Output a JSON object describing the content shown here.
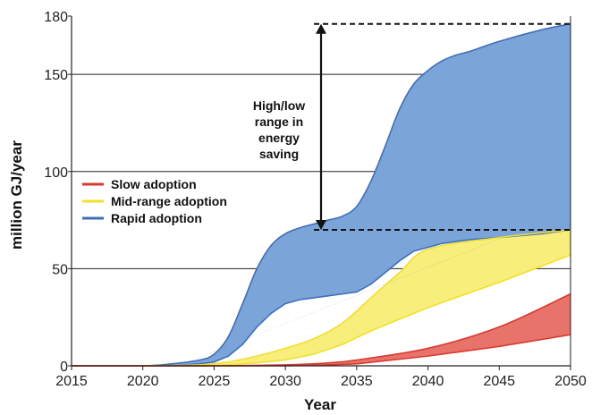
{
  "chart_data": {
    "type": "area",
    "title": "",
    "xlabel": "Year",
    "ylabel": "million GJ/year",
    "xlim": [
      2015,
      2050
    ],
    "ylim": [
      0,
      180
    ],
    "x_ticks": [
      2015,
      2020,
      2025,
      2030,
      2035,
      2040,
      2045,
      2050
    ],
    "y_ticks": [
      0,
      50,
      100,
      150,
      180
    ],
    "grid": "horizontal",
    "legend_position": "middle-left",
    "series": [
      {
        "name": "Slow adoption",
        "color": "#e8736a",
        "edge_color": "#d93a30",
        "x": [
          2015,
          2020,
          2025,
          2030,
          2033,
          2035,
          2040,
          2045,
          2050
        ],
        "lower": [
          0,
          0,
          0,
          0,
          0.5,
          1,
          5,
          10,
          16
        ],
        "upper": [
          0,
          0,
          0,
          0.5,
          1.5,
          3,
          9,
          20,
          37
        ]
      },
      {
        "name": "Mid-range adoption",
        "color": "#f7ee7c",
        "edge_color": "#f2df2e",
        "x": [
          2015,
          2020,
          2024,
          2026,
          2028,
          2030,
          2032,
          2034,
          2036,
          2038,
          2040,
          2045,
          2050
        ],
        "lower": [
          0,
          0,
          0,
          0.5,
          1.5,
          3,
          6,
          11,
          18,
          24,
          30,
          43,
          57
        ],
        "upper": [
          0,
          0,
          0.5,
          2,
          5,
          9,
          14,
          22,
          35,
          48,
          60,
          66,
          70
        ]
      },
      {
        "name": "Rapid adoption",
        "color": "#7ba4d9",
        "edge_color": "#3f6fb8",
        "x": [
          2015,
          2020,
          2022,
          2024,
          2025,
          2026,
          2027,
          2028,
          2029,
          2030,
          2031,
          2032,
          2033,
          2034,
          2035,
          2036,
          2037,
          2038,
          2039,
          2040,
          2041,
          2042,
          2043,
          2045,
          2048,
          2050
        ],
        "lower": [
          0,
          0,
          0,
          1,
          2,
          5,
          11,
          20,
          27,
          32,
          34,
          35,
          36,
          37,
          38,
          42,
          48,
          54,
          59,
          61,
          63,
          64,
          65,
          66,
          68,
          70
        ],
        "upper": [
          0,
          0,
          1,
          3,
          6,
          15,
          32,
          50,
          62,
          68,
          71,
          73,
          75,
          77,
          82,
          95,
          113,
          132,
          145,
          152,
          157,
          160,
          162,
          167,
          173,
          176
        ]
      }
    ],
    "overlap_region": {
      "color": "#7d9a82",
      "note_series": [
        "Rapid adoption",
        "Mid-range adoption"
      ]
    },
    "annotation": {
      "lines": [
        "High/low",
        "range in",
        "energy",
        "saving"
      ],
      "arrow_x": 2032.5,
      "arrow_from": 70,
      "arrow_to": 176,
      "dashed_line_from_x": 2032,
      "dashed_line_to_x": 2050,
      "dashed_levels": [
        176,
        70
      ]
    }
  }
}
